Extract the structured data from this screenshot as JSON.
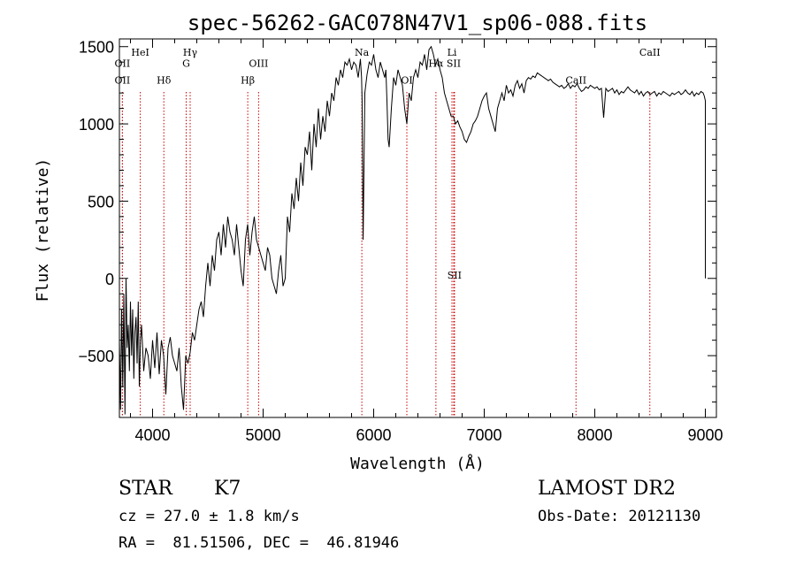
{
  "chart_data": {
    "type": "line",
    "title": "spec-56262-GAC078N47V1_sp06-088.fits",
    "xlabel": "Wavelength (Å)",
    "ylabel": "Flux (relative)",
    "xlim": [
      3700,
      9100
    ],
    "ylim": [
      -900,
      1550
    ],
    "xticks": [
      4000,
      5000,
      6000,
      7000,
      8000,
      9000
    ],
    "xtick_labels": [
      "4000",
      "5000",
      "6000",
      "7000",
      "8000",
      "9000"
    ],
    "yticks": [
      -500,
      0,
      500,
      1000,
      1500
    ],
    "ytick_labels": [
      "−500",
      "0",
      "500",
      "1000",
      "1500"
    ],
    "grid": false,
    "line_color": "#000000",
    "marker_color": "#cc0000",
    "series": [
      {
        "x": [
          3700,
          3710,
          3720,
          3730,
          3740,
          3750,
          3760,
          3770,
          3780,
          3790,
          3800,
          3810,
          3820,
          3830,
          3840,
          3850,
          3860,
          3870,
          3880,
          3890,
          3900,
          3920,
          3940,
          3960,
          3980,
          4000,
          4020,
          4040,
          4060,
          4080,
          4100,
          4120,
          4140,
          4160,
          4180,
          4200,
          4220,
          4240,
          4260,
          4280,
          4300,
          4320,
          4340,
          4360,
          4380,
          4400,
          4420,
          4440,
          4460,
          4480,
          4500,
          4520,
          4540,
          4560,
          4580,
          4600,
          4620,
          4640,
          4660,
          4680,
          4700,
          4720,
          4740,
          4760,
          4780,
          4800,
          4820,
          4840,
          4860,
          4880,
          4900,
          4920,
          4940,
          4960,
          4980,
          5000,
          5020,
          5040,
          5060,
          5080,
          5100,
          5120,
          5140,
          5160,
          5180,
          5200,
          5220,
          5240,
          5260,
          5280,
          5300,
          5320,
          5340,
          5360,
          5380,
          5400,
          5420,
          5440,
          5460,
          5480,
          5500,
          5520,
          5540,
          5560,
          5580,
          5600,
          5620,
          5640,
          5660,
          5680,
          5700,
          5720,
          5740,
          5760,
          5780,
          5800,
          5820,
          5840,
          5860,
          5880,
          5890,
          5895,
          5900,
          5905,
          5910,
          5920,
          5940,
          5960,
          5980,
          6000,
          6020,
          6040,
          6060,
          6080,
          6100,
          6110,
          6120,
          6130,
          6140,
          6160,
          6180,
          6200,
          6220,
          6240,
          6260,
          6280,
          6300,
          6320,
          6340,
          6360,
          6380,
          6400,
          6420,
          6440,
          6460,
          6480,
          6500,
          6520,
          6540,
          6560,
          6580,
          6600,
          6620,
          6640,
          6660,
          6680,
          6700,
          6720,
          6740,
          6760,
          6780,
          6800,
          6820,
          6840,
          6860,
          6880,
          6900,
          6920,
          6940,
          6960,
          6980,
          7000,
          7020,
          7040,
          7060,
          7080,
          7100,
          7120,
          7140,
          7160,
          7180,
          7200,
          7220,
          7240,
          7260,
          7280,
          7300,
          7320,
          7340,
          7360,
          7380,
          7400,
          7420,
          7440,
          7460,
          7480,
          7500,
          7520,
          7540,
          7560,
          7580,
          7600,
          7620,
          7640,
          7660,
          7680,
          7700,
          7720,
          7740,
          7760,
          7780,
          7800,
          7820,
          7840,
          7860,
          7880,
          7900,
          7920,
          7940,
          7960,
          7980,
          8000,
          8020,
          8040,
          8060,
          8080,
          8100,
          8120,
          8140,
          8160,
          8180,
          8200,
          8220,
          8240,
          8260,
          8280,
          8300,
          8320,
          8340,
          8360,
          8380,
          8400,
          8420,
          8440,
          8460,
          8480,
          8500,
          8520,
          8540,
          8560,
          8580,
          8600,
          8620,
          8640,
          8660,
          8680,
          8700,
          8720,
          8740,
          8760,
          8780,
          8800,
          8820,
          8840,
          8860,
          8880,
          8900,
          8920,
          8940,
          8960,
          8980,
          8990,
          9000,
          9000
        ],
        "y": [
          -400,
          -850,
          -200,
          -700,
          -100,
          -880,
          0,
          -450,
          -300,
          -600,
          -150,
          -500,
          -200,
          -650,
          -350,
          -250,
          -550,
          -150,
          -700,
          -400,
          -300,
          -600,
          -450,
          -500,
          -650,
          -400,
          -580,
          -350,
          -620,
          -400,
          -500,
          -750,
          -450,
          -380,
          -500,
          -550,
          -600,
          -450,
          -700,
          -850,
          -500,
          -550,
          -480,
          -350,
          -400,
          -300,
          -200,
          -150,
          -250,
          -50,
          100,
          -50,
          150,
          50,
          250,
          300,
          150,
          350,
          200,
          400,
          300,
          250,
          150,
          350,
          200,
          50,
          -50,
          250,
          350,
          150,
          300,
          400,
          250,
          200,
          150,
          100,
          50,
          200,
          150,
          0,
          -50,
          -100,
          50,
          150,
          -50,
          0,
          400,
          300,
          550,
          450,
          650,
          500,
          750,
          600,
          850,
          800,
          950,
          700,
          1000,
          850,
          1100,
          900,
          1050,
          950,
          1150,
          1050,
          1200,
          1150,
          1300,
          1250,
          1350,
          1300,
          1400,
          1380,
          1420,
          1350,
          1400,
          1380,
          1300,
          1420,
          1300,
          1150,
          700,
          250,
          600,
          1200,
          1320,
          1400,
          1380,
          1450,
          1350,
          1300,
          1400,
          1350,
          1300,
          1350,
          1150,
          900,
          850,
          1100,
          1300,
          1250,
          1350,
          1300,
          1250,
          1100,
          1000,
          1200,
          1150,
          1300,
          1350,
          1300,
          1400,
          1380,
          1450,
          1350,
          1480,
          1500,
          1450,
          1380,
          1420,
          1350,
          1300,
          1200,
          1150,
          1100,
          1050,
          1050,
          1000,
          1020,
          980,
          950,
          900,
          880,
          920,
          950,
          1000,
          1020,
          1050,
          1100,
          1150,
          1180,
          1200,
          1100,
          1050,
          1000,
          950,
          1100,
          1150,
          1200,
          1150,
          1250,
          1200,
          1220,
          1180,
          1250,
          1280,
          1230,
          1260,
          1200,
          1280,
          1300,
          1290,
          1310,
          1300,
          1330,
          1320,
          1310,
          1300,
          1290,
          1280,
          1290,
          1270,
          1260,
          1250,
          1240,
          1250,
          1230,
          1240,
          1260,
          1230,
          1250,
          1240,
          1260,
          1230,
          1210,
          1220,
          1240,
          1230,
          1250,
          1240,
          1230,
          1240,
          1220,
          1230,
          1040,
          1230,
          1210,
          1220,
          1230,
          1200,
          1220,
          1190,
          1210,
          1200,
          1220,
          1240,
          1220,
          1210,
          1200,
          1220,
          1190,
          1210,
          1180,
          1200,
          1210,
          1190,
          1200,
          1210,
          1180,
          1200,
          1190,
          1210,
          1200,
          1190,
          1180,
          1200,
          1190,
          1200,
          1210,
          1190,
          1200,
          1220,
          1200,
          1190,
          1210,
          1180,
          1200,
          1190,
          1210,
          1200,
          1180,
          1150,
          0
        ]
      }
    ],
    "lines": [
      {
        "name": "OII",
        "x": 3727,
        "label_y": 1370
      },
      {
        "name": "OII",
        "x": 3727,
        "label_y": 1260
      },
      {
        "name": "HeI",
        "x": 3889,
        "label_y": 1440
      },
      {
        "name": "Hδ",
        "x": 4102,
        "label_y": 1260
      },
      {
        "name": "Hγ",
        "x": 4340,
        "label_y": 1440
      },
      {
        "name": "G",
        "x": 4304,
        "label_y": 1370
      },
      {
        "name": "Hβ",
        "x": 4861,
        "label_y": 1260
      },
      {
        "name": "OIII",
        "x": 4959,
        "label_y": 1370
      },
      {
        "name": "Na",
        "x": 5893,
        "label_y": 1440
      },
      {
        "name": "OI",
        "x": 6300,
        "label_y": 1260
      },
      {
        "name": "Hα",
        "x": 6563,
        "label_y": 1370
      },
      {
        "name": "Li",
        "x": 6708,
        "label_y": 1440
      },
      {
        "name": "SII",
        "x": 6724,
        "label_y": 1370
      },
      {
        "name": "SII",
        "x": 6731,
        "label_y": 0
      },
      {
        "name": "CaII",
        "x": 7830,
        "label_y": 1260
      },
      {
        "name": "CaII",
        "x": 8498,
        "label_y": 1440
      }
    ]
  },
  "info": {
    "object_class": "STAR",
    "subclass": "K7",
    "survey": "LAMOST DR2",
    "redshift": "cz = 27.0 ± 1.8 km/s",
    "obs_date": "Obs-Date: 20121130",
    "coords": "RA =  81.51506, DEC =  46.81946"
  }
}
